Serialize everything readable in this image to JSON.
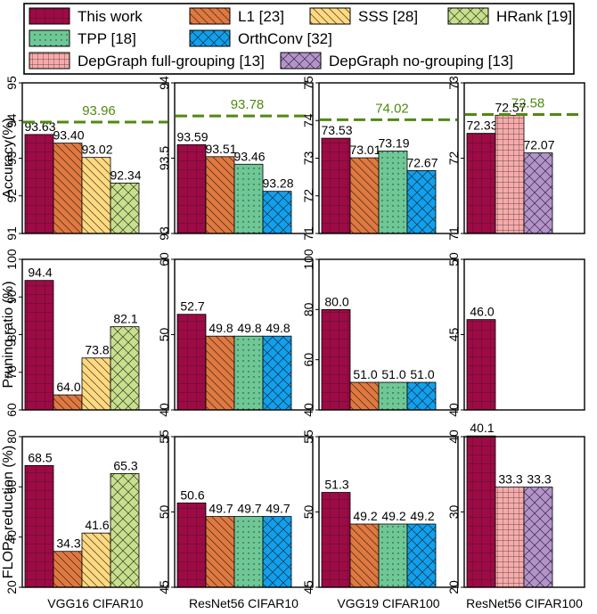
{
  "legend": {
    "entries": [
      {
        "key": "this_work",
        "label": "This work"
      },
      {
        "key": "l1",
        "label": "L1 [23]"
      },
      {
        "key": "sss",
        "label": "SSS [28]"
      },
      {
        "key": "hrank",
        "label": "HRank [19]"
      },
      {
        "key": "tpp",
        "label": "TPP [18]"
      },
      {
        "key": "orthconv",
        "label": "OrthConv [32]"
      },
      {
        "key": "depgraph_full",
        "label": "DepGraph full-grouping [13]"
      },
      {
        "key": "depgraph_no",
        "label": "DepGraph no-grouping [13]"
      }
    ]
  },
  "styles": {
    "this_work": {
      "color": "#9e0a45",
      "pattern": "grid"
    },
    "l1": {
      "color": "#e07840",
      "pattern": "back-diag"
    },
    "sss": {
      "color": "#ffd980",
      "pattern": "back-diag"
    },
    "hrank": {
      "color": "#c8e08c",
      "pattern": "cross-diag"
    },
    "tpp": {
      "color": "#6ec896",
      "pattern": "dots"
    },
    "orthconv": {
      "color": "#10a0ee",
      "pattern": "cross-diag"
    },
    "depgraph_full": {
      "color": "#f7aaaa",
      "pattern": "fine-grid"
    },
    "depgraph_no": {
      "color": "#b493cc",
      "pattern": "cross-diag"
    },
    "baseline_line": "#4f8a10"
  },
  "chart_data": [
    {
      "type": "bar",
      "row": "accuracy",
      "ylabel": "Accuracy(%)",
      "ylim": [
        91,
        95
      ],
      "ticks": [
        "91",
        "92",
        "93",
        "94",
        "95"
      ],
      "baseline": {
        "value": 93.96,
        "label": "93.96"
      },
      "series": [
        {
          "key": "this_work",
          "value": 93.63,
          "label": "93.63"
        },
        {
          "key": "l1",
          "value": 93.4,
          "label": "93.40"
        },
        {
          "key": "sss",
          "value": 93.02,
          "label": "93.02"
        },
        {
          "key": "hrank",
          "value": 92.34,
          "label": "92.34"
        }
      ]
    },
    {
      "type": "bar",
      "row": "accuracy",
      "ylim": [
        93,
        94
      ],
      "ticks": [
        "93",
        "93.5",
        "94"
      ],
      "baseline": {
        "value": 93.78,
        "label": "93.78"
      },
      "series": [
        {
          "key": "this_work",
          "value": 93.59,
          "label": "93.59"
        },
        {
          "key": "l1",
          "value": 93.51,
          "label": "93.51"
        },
        {
          "key": "tpp",
          "value": 93.46,
          "label": "93.46"
        },
        {
          "key": "orthconv",
          "value": 93.28,
          "label": "93.28"
        }
      ]
    },
    {
      "type": "bar",
      "row": "accuracy",
      "ylim": [
        71,
        75
      ],
      "ticks": [
        "71",
        "72",
        "73",
        "74",
        "75"
      ],
      "baseline": {
        "value": 74.02,
        "label": "74.02"
      },
      "series": [
        {
          "key": "this_work",
          "value": 73.53,
          "label": "73.53"
        },
        {
          "key": "l1",
          "value": 73.01,
          "label": "73.01"
        },
        {
          "key": "tpp",
          "value": 73.19,
          "label": "73.19"
        },
        {
          "key": "orthconv",
          "value": 72.67,
          "label": "72.67"
        }
      ]
    },
    {
      "type": "bar",
      "row": "accuracy",
      "ylim": [
        71,
        73
      ],
      "ticks": [
        "71",
        "72",
        "73"
      ],
      "baseline": {
        "value": 72.58,
        "label": "72.58"
      },
      "series": [
        {
          "key": "this_work",
          "value": 72.33,
          "label": "72.33"
        },
        {
          "key": "depgraph_full",
          "value": 72.57,
          "label": "72.57"
        },
        {
          "key": "depgraph_no",
          "value": 72.07,
          "label": "72.07"
        }
      ]
    },
    {
      "type": "bar",
      "row": "pruning",
      "ylabel": "Pruning ratio (%)",
      "ylim": [
        60,
        100
      ],
      "ticks": [
        "60",
        "70",
        "80",
        "90",
        "100"
      ],
      "series": [
        {
          "key": "this_work",
          "value": 94.4,
          "label": "94.4"
        },
        {
          "key": "l1",
          "value": 64.0,
          "label": "64.0"
        },
        {
          "key": "sss",
          "value": 73.8,
          "label": "73.8"
        },
        {
          "key": "hrank",
          "value": 82.1,
          "label": "82.1"
        }
      ]
    },
    {
      "type": "bar",
      "row": "pruning",
      "ylim": [
        40,
        60
      ],
      "ticks": [
        "40",
        "50",
        "60"
      ],
      "series": [
        {
          "key": "this_work",
          "value": 52.7,
          "label": "52.7"
        },
        {
          "key": "l1",
          "value": 49.8,
          "label": "49.8"
        },
        {
          "key": "tpp",
          "value": 49.8,
          "label": "49.8"
        },
        {
          "key": "orthconv",
          "value": 49.8,
          "label": "49.8"
        }
      ]
    },
    {
      "type": "bar",
      "row": "pruning",
      "ylim": [
        40,
        100
      ],
      "ticks": [
        "40",
        "60",
        "80",
        "100"
      ],
      "series": [
        {
          "key": "this_work",
          "value": 80.0,
          "label": "80.0"
        },
        {
          "key": "l1",
          "value": 51.0,
          "label": "51.0"
        },
        {
          "key": "tpp",
          "value": 51.0,
          "label": "51.0"
        },
        {
          "key": "orthconv",
          "value": 51.0,
          "label": "51.0"
        }
      ]
    },
    {
      "type": "bar",
      "row": "pruning",
      "ylim": [
        40,
        50
      ],
      "ticks": [
        "40",
        "45",
        "50"
      ],
      "series": [
        {
          "key": "this_work",
          "value": 46.0,
          "label": "46.0"
        }
      ]
    },
    {
      "type": "bar",
      "row": "flops",
      "ylabel": "FLOPs reduction (%)",
      "xlabel": "VGG16 CIFAR10",
      "ylim": [
        20,
        80
      ],
      "ticks": [
        "20",
        "40",
        "60",
        "80"
      ],
      "series": [
        {
          "key": "this_work",
          "value": 68.5,
          "label": "68.5"
        },
        {
          "key": "l1",
          "value": 34.3,
          "label": "34.3"
        },
        {
          "key": "sss",
          "value": 41.6,
          "label": "41.6"
        },
        {
          "key": "hrank",
          "value": 65.3,
          "label": "65.3"
        }
      ]
    },
    {
      "type": "bar",
      "row": "flops",
      "xlabel": "ResNet56 CIFAR10",
      "ylim": [
        45,
        55
      ],
      "ticks": [
        "45",
        "50",
        "55"
      ],
      "series": [
        {
          "key": "this_work",
          "value": 50.6,
          "label": "50.6"
        },
        {
          "key": "l1",
          "value": 49.7,
          "label": "49.7"
        },
        {
          "key": "tpp",
          "value": 49.7,
          "label": "49.7"
        },
        {
          "key": "orthconv",
          "value": 49.7,
          "label": "49.7"
        }
      ]
    },
    {
      "type": "bar",
      "row": "flops",
      "xlabel": "VGG19 CIFAR100",
      "ylim": [
        45,
        55
      ],
      "ticks": [
        "45",
        "50",
        "55"
      ],
      "series": [
        {
          "key": "this_work",
          "value": 51.3,
          "label": "51.3"
        },
        {
          "key": "l1",
          "value": 49.2,
          "label": "49.2"
        },
        {
          "key": "tpp",
          "value": 49.2,
          "label": "49.2"
        },
        {
          "key": "orthconv",
          "value": 49.2,
          "label": "49.2"
        }
      ]
    },
    {
      "type": "bar",
      "row": "flops",
      "xlabel": "ResNet56 CIFAR100",
      "ylim": [
        20,
        40
      ],
      "ticks": [
        "20",
        "30",
        "40"
      ],
      "series": [
        {
          "key": "this_work",
          "value": 40.1,
          "label": "40.1"
        },
        {
          "key": "depgraph_full",
          "value": 33.3,
          "label": "33.3"
        },
        {
          "key": "depgraph_no",
          "value": 33.3,
          "label": "33.3"
        }
      ]
    }
  ]
}
